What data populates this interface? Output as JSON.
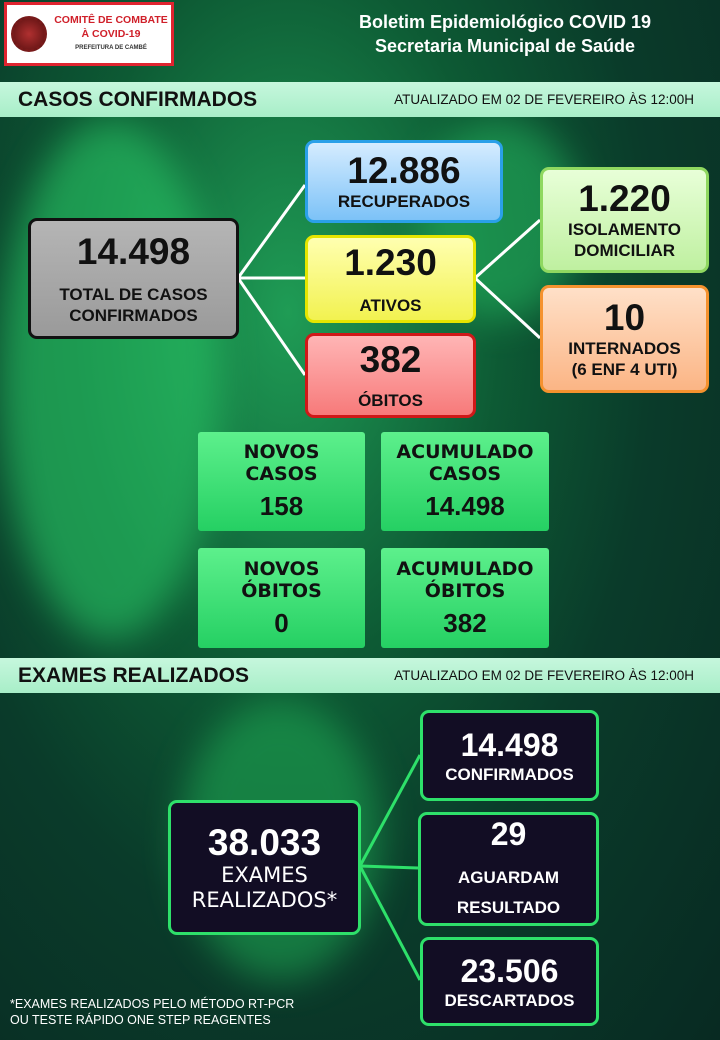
{
  "logo": {
    "line1": "COMITÊ DE COMBATE",
    "line2": "À COVID-19",
    "line3": "PREFEITURA DE CAMBÉ"
  },
  "header": {
    "title": "Boletim Epidemiológico COVID 19",
    "subtitle": "Secretaria Municipal de Saúde"
  },
  "casos": {
    "heading": "CASOS CONFIRMADOS",
    "updated": "ATUALIZADO  EM  02 DE FEVEREIRO ÀS 12:00H",
    "total": {
      "value": "14.498",
      "label": "TOTAL DE CASOS CONFIRMADOS"
    },
    "recuperados": {
      "value": "12.886",
      "label": "RECUPERADOS"
    },
    "ativos": {
      "value": "1.230",
      "label": "ATIVOS"
    },
    "obitos": {
      "value": "382",
      "label": "ÓBITOS"
    },
    "isolamento": {
      "value": "1.220",
      "label": "ISOLAMENTO DOMICILIAR"
    },
    "internados": {
      "value": "10",
      "label": "INTERNADOS",
      "detail": "(6 ENF 4 UTI)"
    },
    "novos_casos": {
      "label": "NOVOS CASOS",
      "value": "158"
    },
    "acumulado_casos": {
      "label": "ACUMULADO CASOS",
      "value": "14.498"
    },
    "novos_obitos": {
      "label": "NOVOS ÓBITOS",
      "value": "0"
    },
    "acumulado_obitos": {
      "label": "ACUMULADO ÓBITOS",
      "value": "382"
    }
  },
  "exames": {
    "heading": "EXAMES REALIZADOS",
    "updated": "ATUALIZADO  EM  02 DE FEVEREIRO ÀS 12:00H",
    "total": {
      "value": "38.033",
      "label": "EXAMES REALIZADOS*"
    },
    "confirmados": {
      "value": "14.498",
      "label": "CONFIRMADOS"
    },
    "aguardam": {
      "value": "29",
      "label": "AGUARDAM RESULTADO"
    },
    "descartados": {
      "value": "23.506",
      "label": "DESCARTADOS"
    },
    "footnote1": "*EXAMES REALIZADOS PELO MÉTODO RT-PCR",
    "footnote2": "OU TESTE RÁPIDO ONE STEP REAGENTES"
  },
  "colors": {
    "bar": "#b7f3d2",
    "green_box": "#3ee576",
    "exam_box": "#120d24",
    "exam_border": "#2ee06a"
  }
}
